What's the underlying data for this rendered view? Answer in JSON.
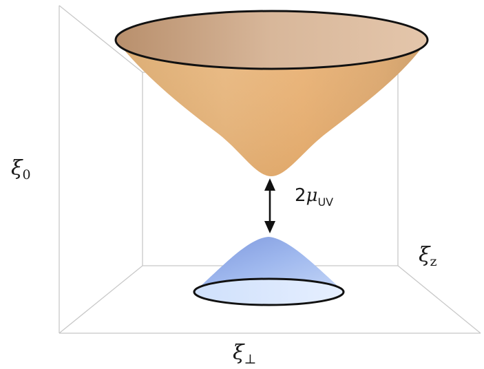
{
  "axes": {
    "vertical": {
      "symbol": "ξ",
      "subscript": "0"
    },
    "depth": {
      "symbol": "ξ",
      "subscript": "z"
    },
    "horizontal": {
      "symbol": "ξ",
      "subscript": "⊥"
    }
  },
  "gap_annotation": {
    "prefix": "2",
    "symbol": "μ",
    "subscript": "UV"
  },
  "colors": {
    "upper_cone": "#e2ac6c",
    "lower_cone": "#9bb6ee",
    "outline": "#111111",
    "box_lines": "#c8c8c8"
  }
}
